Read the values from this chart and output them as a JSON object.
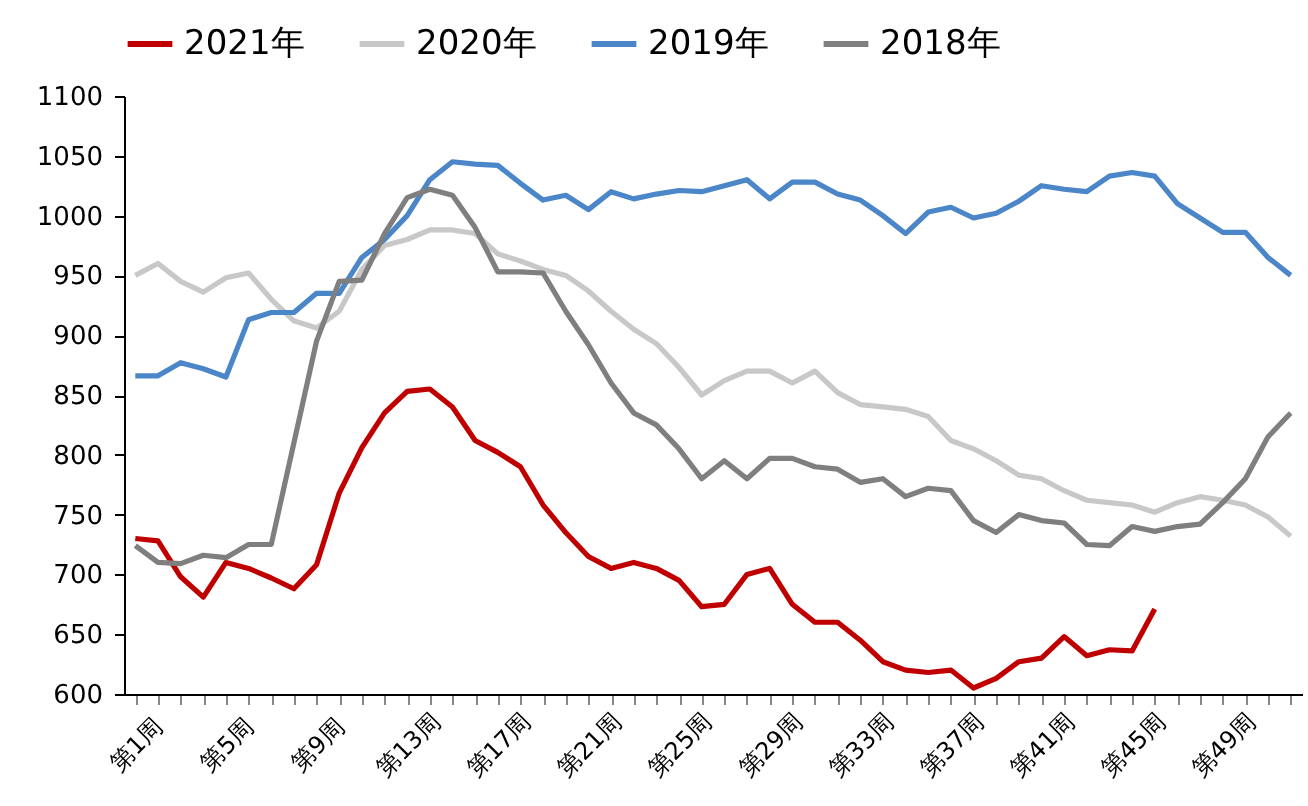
{
  "chart_data": {
    "type": "line",
    "categories": [
      "第1周",
      null,
      null,
      null,
      "第5周",
      null,
      null,
      null,
      "第9周",
      null,
      null,
      null,
      "第13周",
      null,
      null,
      null,
      "第17周",
      null,
      null,
      null,
      "第21周",
      null,
      null,
      null,
      "第25周",
      null,
      null,
      null,
      "第29周",
      null,
      null,
      null,
      "第33周",
      null,
      null,
      null,
      "第37周",
      null,
      null,
      null,
      "第41周",
      null,
      null,
      null,
      "第45周",
      null,
      null,
      null,
      "第49周",
      null,
      null,
      null
    ],
    "series": [
      {
        "name": "2021年",
        "color": "#c00000",
        "values": [
          730,
          728,
          698,
          681,
          710,
          705,
          697,
          688,
          708,
          768,
          806,
          835,
          853,
          855,
          840,
          812,
          802,
          790,
          758,
          735,
          715,
          705,
          710,
          705,
          695,
          673,
          675,
          700,
          705,
          675,
          660,
          660,
          645,
          627,
          620,
          618,
          620,
          605,
          613,
          627,
          630,
          648,
          632,
          637,
          636,
          671,
          null,
          null,
          null,
          null,
          null,
          null
        ]
      },
      {
        "name": "2020年",
        "color": "#c8c8c8",
        "values": [
          950,
          960,
          945,
          936,
          948,
          952,
          930,
          912,
          906,
          920,
          955,
          975,
          980,
          988,
          988,
          985,
          968,
          962,
          955,
          950,
          937,
          920,
          905,
          893,
          873,
          850,
          862,
          870,
          870,
          860,
          870,
          852,
          842,
          840,
          838,
          832,
          812,
          805,
          795,
          783,
          780,
          770,
          762,
          760,
          758,
          752,
          760,
          765,
          762,
          758,
          748,
          732
        ]
      },
      {
        "name": "2019年",
        "color": "#4a86c8",
        "values": [
          866,
          866,
          877,
          872,
          865,
          913,
          919,
          919,
          935,
          935,
          965,
          980,
          1000,
          1030,
          1045,
          1043,
          1042,
          1027,
          1013,
          1017,
          1005,
          1020,
          1014,
          1018,
          1021,
          1020,
          1025,
          1030,
          1014,
          1028,
          1028,
          1018,
          1013,
          1000,
          985,
          1003,
          1007,
          998,
          1002,
          1012,
          1025,
          1022,
          1020,
          1033,
          1036,
          1033,
          1010,
          998,
          986,
          986,
          965,
          950
        ]
      },
      {
        "name": "2018年",
        "color": "#7f7f7f",
        "values": [
          724,
          710,
          709,
          716,
          714,
          725,
          725,
          810,
          895,
          945,
          946,
          985,
          1015,
          1022,
          1017,
          990,
          953,
          953,
          952,
          920,
          892,
          860,
          835,
          825,
          805,
          780,
          795,
          780,
          797,
          797,
          790,
          788,
          777,
          780,
          765,
          772,
          770,
          745,
          735,
          750,
          745,
          743,
          725,
          724,
          740,
          736,
          740,
          742,
          760,
          780,
          815,
          835
        ]
      }
    ],
    "ylim": [
      600,
      1100
    ],
    "yticks": [
      600,
      650,
      700,
      750,
      800,
      850,
      900,
      950,
      1000,
      1050,
      1100
    ],
    "grid": false,
    "legend": "top",
    "marker": "none",
    "line_style": "solid"
  }
}
